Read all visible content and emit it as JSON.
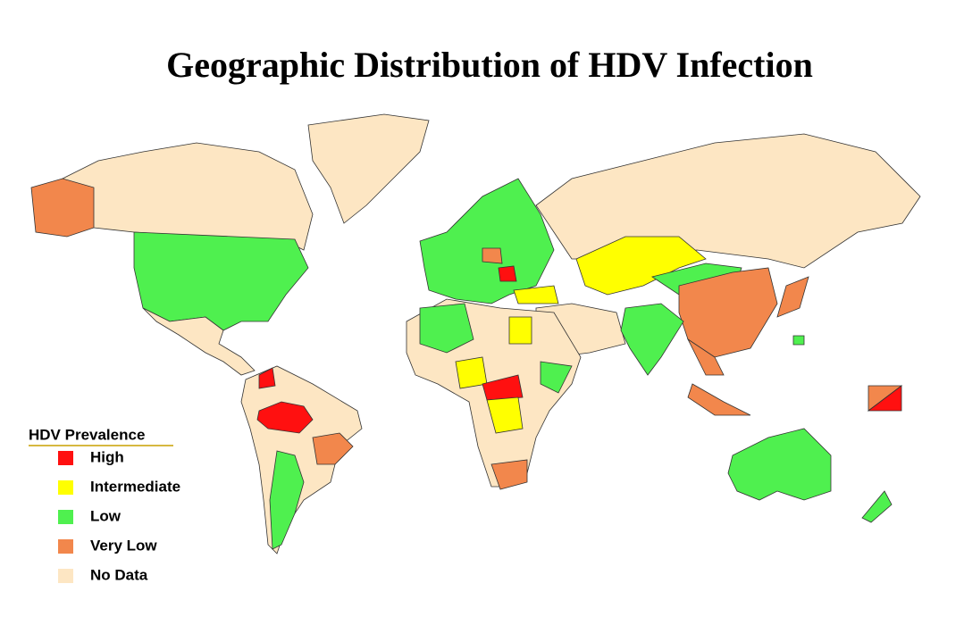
{
  "title": "Geographic Distribution of HDV Infection",
  "legend": {
    "title": "HDV Prevalence",
    "items": [
      {
        "label": "High",
        "color": "#ff1010"
      },
      {
        "label": "Intermediate",
        "color": "#ffff00"
      },
      {
        "label": "Low",
        "color": "#4ff04f"
      },
      {
        "label": "Very Low",
        "color": "#f2874c"
      },
      {
        "label": "No Data",
        "color": "#fde6c3"
      }
    ]
  }
}
